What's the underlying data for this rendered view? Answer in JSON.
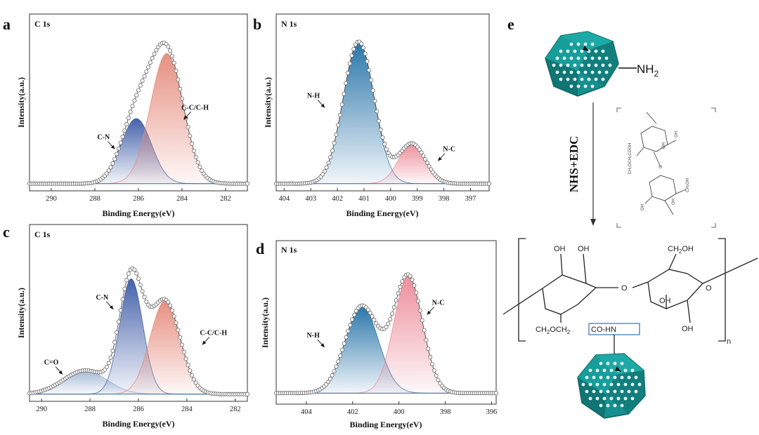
{
  "chart_data": [
    {
      "id": "a",
      "panel_label": "a",
      "type": "line",
      "title": "C 1s",
      "xlabel": "Binding Energy(eV)",
      "ylabel": "Intensity(a.u.)",
      "xlim": [
        291,
        281
      ],
      "xticks": [
        290,
        288,
        286,
        284,
        282
      ],
      "ylim": [
        0,
        1.1
      ],
      "baseline": 0.02,
      "peaks": [
        {
          "name": "C-N",
          "center": 286.1,
          "height": 0.44,
          "width": 0.7,
          "color": "#3b5aa6"
        },
        {
          "name": "C-C/C-H",
          "center": 284.7,
          "height": 0.88,
          "width": 0.75,
          "color": "#e58a7a"
        }
      ],
      "annotations": [
        {
          "text": "C-N",
          "x": 287.6,
          "y": 0.32
        },
        {
          "text": "C-C/C-H",
          "x": 283.4,
          "y": 0.52
        }
      ]
    },
    {
      "id": "b",
      "panel_label": "b",
      "type": "line",
      "title": "N 1s",
      "xlabel": "Binding Energy(eV)",
      "ylabel": "Intensity(a.u.)",
      "xlim": [
        404.3,
        396.3
      ],
      "xticks": [
        404,
        403,
        402,
        401,
        400,
        399,
        398,
        397
      ],
      "ylim": [
        0,
        1.1
      ],
      "baseline": 0.02,
      "peaks": [
        {
          "name": "N-H",
          "center": 401.2,
          "height": 0.96,
          "width": 0.58,
          "color": "#1f6fa6"
        },
        {
          "name": "N-C",
          "center": 399.2,
          "height": 0.27,
          "width": 0.5,
          "color": "#ec8a97"
        }
      ],
      "annotations": [
        {
          "text": "N-H",
          "x": 402.9,
          "y": 0.6
        },
        {
          "text": "N-C",
          "x": 397.8,
          "y": 0.24
        }
      ]
    },
    {
      "id": "c",
      "panel_label": "c",
      "type": "line",
      "title": "C 1s",
      "xlabel": "Binding Energy(eV)",
      "ylabel": "Intensity(a.u.)",
      "xlim": [
        290.5,
        281.5
      ],
      "xticks": [
        290,
        288,
        286,
        284,
        282
      ],
      "ylim": [
        0,
        1.1
      ],
      "baseline": 0.02,
      "peaks": [
        {
          "name": "C=O",
          "center": 288.2,
          "height": 0.16,
          "width": 0.9,
          "color": "#9fb6d4"
        },
        {
          "name": "C-N",
          "center": 286.3,
          "height": 0.78,
          "width": 0.48,
          "color": "#3b5aa6"
        },
        {
          "name": "C-C/C-H",
          "center": 284.9,
          "height": 0.63,
          "width": 0.62,
          "color": "#e58a7a"
        }
      ],
      "annotations": [
        {
          "text": "C=O",
          "x": 289.6,
          "y": 0.22
        },
        {
          "text": "C-N",
          "x": 287.5,
          "y": 0.66
        },
        {
          "text": "C-C/C-H",
          "x": 282.9,
          "y": 0.42
        }
      ]
    },
    {
      "id": "d",
      "panel_label": "d",
      "type": "line",
      "title": "N 1s",
      "xlabel": "Binding Energy(eV)",
      "ylabel": "Intensity(a.u.)",
      "xlim": [
        405.3,
        395.8
      ],
      "xticks": [
        404,
        402,
        400,
        398,
        396
      ],
      "ylim": [
        0,
        1.1
      ],
      "baseline": 0.05,
      "peaks": [
        {
          "name": "N-H",
          "center": 401.6,
          "height": 0.64,
          "width": 0.72,
          "color": "#1f6fa6"
        },
        {
          "name": "N-C",
          "center": 399.6,
          "height": 0.86,
          "width": 0.62,
          "color": "#ec8a97"
        }
      ],
      "annotations": [
        {
          "text": "N-H",
          "x": 403.7,
          "y": 0.46
        },
        {
          "text": "N-C",
          "x": 398.3,
          "y": 0.7
        }
      ]
    }
  ],
  "scheme": {
    "panel_label": "e",
    "nh2": "NH",
    "nh2_sub": "2",
    "reagent": "NHS+EDC",
    "oh": "OH",
    "ch2oh": "CH",
    "ch2oh_sub": "2",
    "ch2oh_tail": "OH",
    "o": "O",
    "linker": "CH",
    "linker_sub1": "2",
    "linker_mid": "OCH",
    "linker_sub2": "2",
    "amide": "CO-HN",
    "n": "n",
    "inset_oh": "OH",
    "inset_carboxy": "CH₂OCH₂COOH",
    "inset_ch2oh": "CH₂OH",
    "inset_o": "O"
  }
}
